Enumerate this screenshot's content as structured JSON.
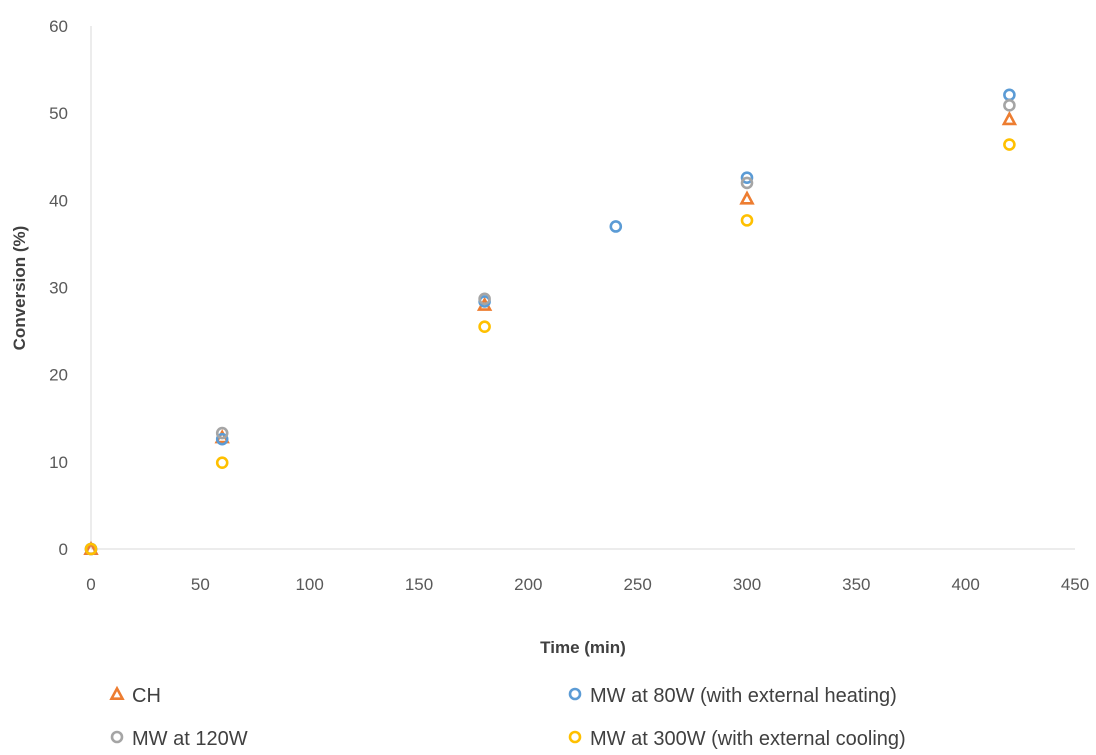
{
  "chart_data": {
    "type": "scatter",
    "title": "",
    "xlabel": "Time (min)",
    "ylabel": "Conversion (%)",
    "xlim": [
      0,
      450
    ],
    "ylim": [
      0,
      60
    ],
    "xticks": [
      0,
      50,
      100,
      150,
      200,
      250,
      300,
      350,
      400,
      450
    ],
    "yticks": [
      0,
      10,
      20,
      30,
      40,
      50,
      60
    ],
    "grid": false,
    "legend_position": "bottom",
    "series": [
      {
        "name": "CH",
        "marker": "triangle",
        "color": "#ED7D31",
        "points": [
          [
            0,
            0
          ],
          [
            60,
            12.8
          ],
          [
            180,
            28.0
          ],
          [
            300,
            40.2
          ],
          [
            420,
            49.3
          ]
        ]
      },
      {
        "name": "MW at 80W (with external heating)",
        "marker": "circle",
        "color": "#5B9BD5",
        "points": [
          [
            0,
            0
          ],
          [
            60,
            12.6
          ],
          [
            180,
            28.4
          ],
          [
            240,
            37.0
          ],
          [
            300,
            42.6
          ],
          [
            420,
            52.1
          ]
        ]
      },
      {
        "name": "MW at 120W",
        "marker": "circle",
        "color": "#A5A5A5",
        "points": [
          [
            0,
            0
          ],
          [
            60,
            13.3
          ],
          [
            180,
            28.7
          ],
          [
            300,
            42.0
          ],
          [
            420,
            50.9
          ]
        ]
      },
      {
        "name": "MW at 300W (with external cooling)",
        "marker": "circle",
        "color": "#FFC000",
        "points": [
          [
            0,
            0
          ],
          [
            60,
            9.9
          ],
          [
            180,
            25.5
          ],
          [
            300,
            37.7
          ],
          [
            420,
            46.4
          ]
        ]
      }
    ]
  }
}
